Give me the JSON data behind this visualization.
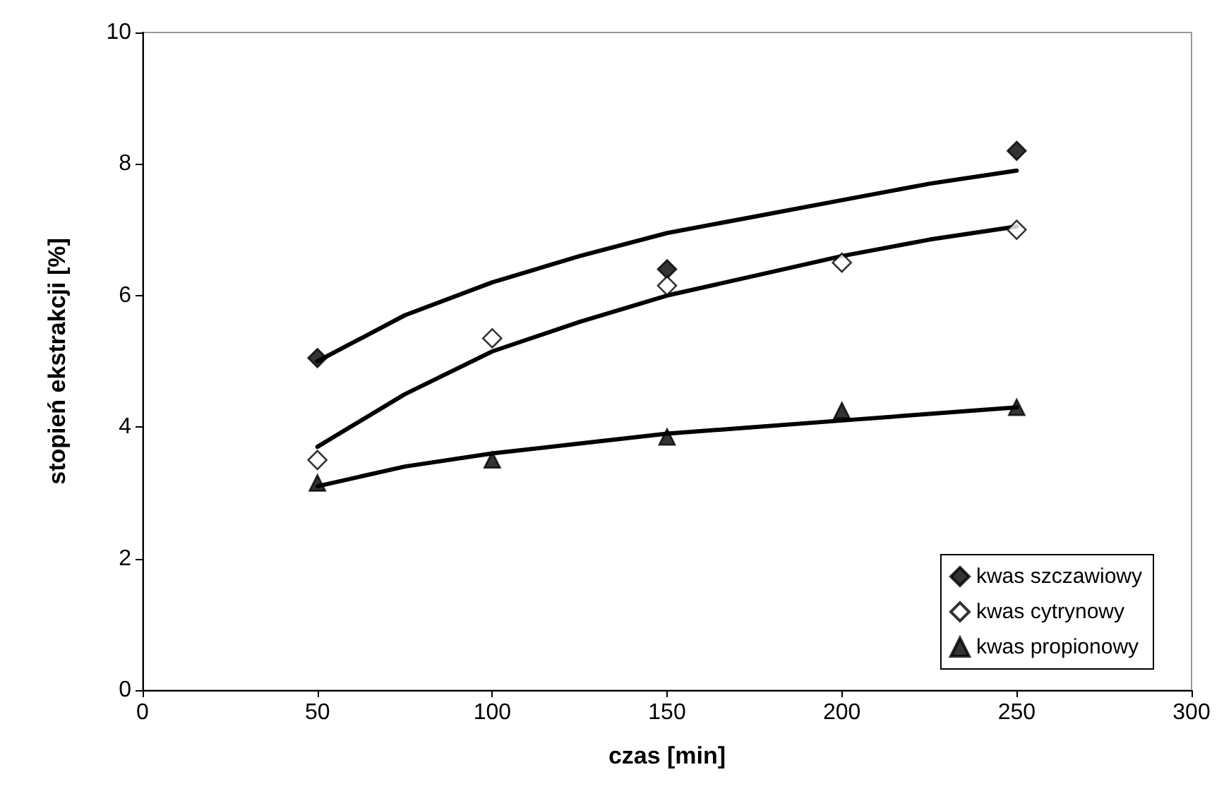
{
  "chart_data": {
    "type": "scatter",
    "xlabel": "czas [min]",
    "ylabel": "stopień ekstrakcji [%]",
    "xlim": [
      0,
      300
    ],
    "xticks": [
      0,
      50,
      100,
      150,
      200,
      250,
      300
    ],
    "ylim": [
      0,
      10
    ],
    "yticks": [
      0,
      2,
      4,
      6,
      8,
      10
    ],
    "grid": false,
    "legend": "bottom right",
    "series": [
      {
        "name": "kwas szczawiowy",
        "color": "#000000",
        "marker": "diamond",
        "x": [
          50,
          150,
          250
        ],
        "values": [
          5.05,
          6.4,
          8.2
        ]
      },
      {
        "name": "kwas cytrynowy",
        "color": "#ffffff",
        "marker": "diamond",
        "x": [
          50,
          100,
          150,
          200,
          250
        ],
        "values": [
          3.5,
          5.35,
          6.15,
          6.5,
          7.0
        ]
      },
      {
        "name": "kwas propionowy",
        "color": "#000000",
        "marker": "triangle",
        "x": [
          50,
          100,
          150,
          200,
          250
        ],
        "values": [
          3.15,
          3.5,
          3.85,
          4.25,
          4.3
        ]
      },
      {
        "type": "line",
        "color": "#000000",
        "x": [
          50,
          75,
          100,
          125,
          150,
          175,
          200,
          225,
          250
        ],
        "values": [
          5.0,
          5.7,
          6.2,
          6.6,
          6.95,
          7.2,
          7.45,
          7.7,
          7.9
        ]
      },
      {
        "type": "line",
        "color": "#000000",
        "x": [
          50,
          75,
          100,
          125,
          150,
          175,
          200,
          225,
          250
        ],
        "values": [
          3.7,
          4.5,
          5.15,
          5.6,
          6.0,
          6.3,
          6.6,
          6.85,
          7.05
        ]
      },
      {
        "type": "line",
        "color": "#000000",
        "x": [
          50,
          75,
          100,
          125,
          150,
          175,
          200,
          225,
          250
        ],
        "values": [
          3.1,
          3.4,
          3.6,
          3.75,
          3.9,
          4.0,
          4.1,
          4.2,
          4.3
        ]
      }
    ]
  }
}
